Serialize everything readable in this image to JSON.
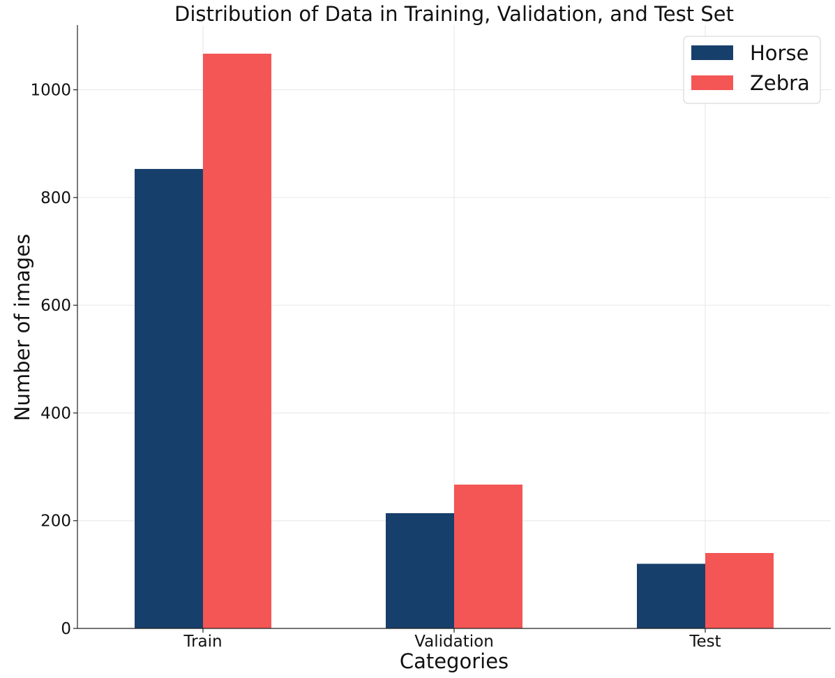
{
  "chart_data": {
    "type": "bar",
    "title": "Distribution of Data in Training, Validation, and Test Set",
    "xlabel": "Categories",
    "ylabel": "Number of images",
    "categories": [
      "Train",
      "Validation",
      "Test"
    ],
    "series": [
      {
        "name": "Horse",
        "color": "#173F6B",
        "values": [
          853,
          214,
          120
        ]
      },
      {
        "name": "Zebra",
        "color": "#F45555",
        "values": [
          1067,
          267,
          140
        ]
      }
    ],
    "ylim": [
      0,
      1120
    ],
    "yticks": [
      0,
      200,
      400,
      600,
      800,
      1000
    ],
    "grid": true,
    "legend_position": "top-right"
  }
}
